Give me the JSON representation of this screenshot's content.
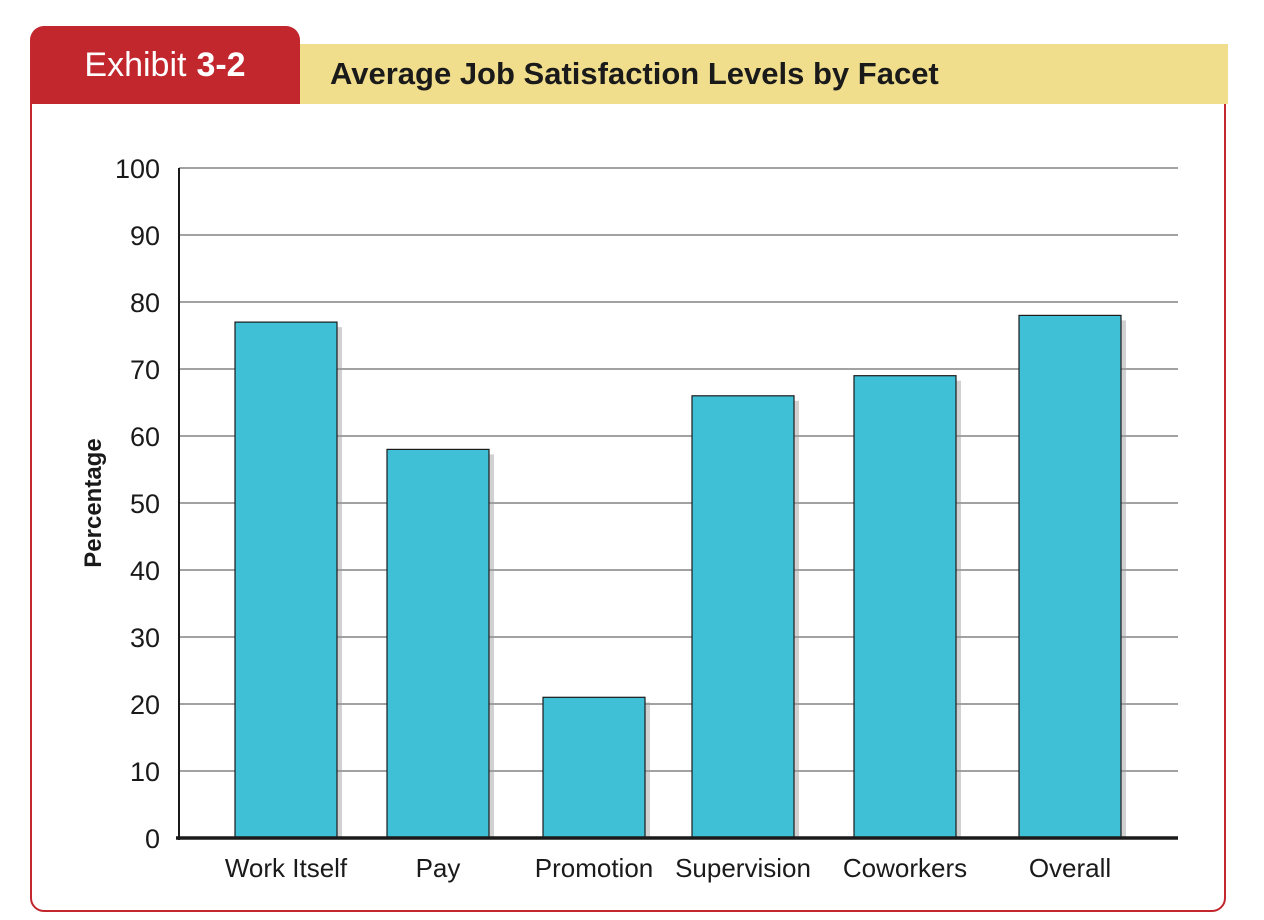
{
  "header": {
    "exhibit_word": "Exhibit",
    "exhibit_number": "3-2",
    "title": "Average Job Satisfaction Levels by Facet"
  },
  "colors": {
    "accent_red": "#c1272d",
    "title_band": "#f0de8c",
    "bar_fill": "#40c0d6"
  },
  "chart_data": {
    "type": "bar",
    "title": "Average Job Satisfaction Levels by Facet",
    "xlabel": "",
    "ylabel": "Percentage",
    "categories": [
      "Work Itself",
      "Pay",
      "Promotion",
      "Supervision",
      "Coworkers",
      "Overall"
    ],
    "values": [
      77,
      58,
      21,
      66,
      69,
      78
    ],
    "ylim": [
      0,
      100
    ],
    "yticks": [
      0,
      10,
      20,
      30,
      40,
      50,
      60,
      70,
      80,
      90,
      100
    ],
    "grid": true,
    "legend": "none"
  }
}
